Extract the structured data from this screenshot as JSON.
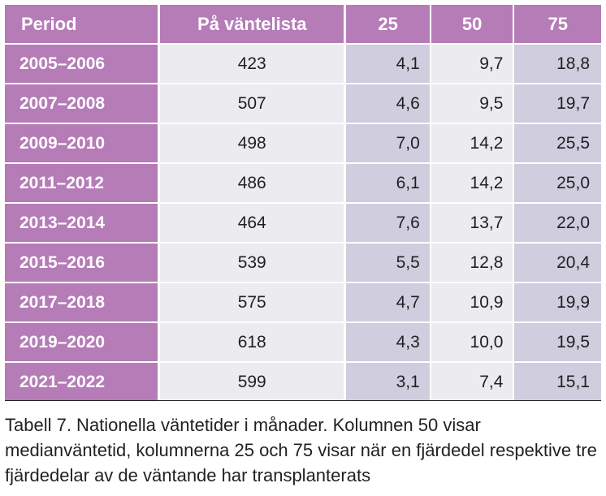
{
  "table": {
    "headers": [
      "Period",
      "På väntelista",
      "25",
      "50",
      "75"
    ],
    "rows": [
      [
        "2005–2006",
        "423",
        "4,1",
        "9,7",
        "18,8"
      ],
      [
        "2007–2008",
        "507",
        "4,6",
        "9,5",
        "19,7"
      ],
      [
        "2009–2010",
        "498",
        "7,0",
        "14,2",
        "25,5"
      ],
      [
        "2011–2012",
        "486",
        "6,1",
        "14,2",
        "25,0"
      ],
      [
        "2013–2014",
        "464",
        "7,6",
        "13,7",
        "22,0"
      ],
      [
        "2015–2016",
        "539",
        "5,5",
        "12,8",
        "20,4"
      ],
      [
        "2017–2018",
        "575",
        "4,7",
        "10,9",
        "19,9"
      ],
      [
        "2019–2020",
        "618",
        "4,3",
        "10,0",
        "19,5"
      ],
      [
        "2021–2022",
        "599",
        "3,1",
        "7,4",
        "15,1"
      ]
    ]
  },
  "caption": "Tabell 7. Nationella väntetider i månader. Kolumnen 50 visar medianväntetid, kolumnerna 25 och 75 visar när en fjärdedel respektive tre fjärdedelar av de väntande har transplanterats",
  "colors": {
    "header_purple": "#b57cb7",
    "light_cell": "#ebebf0",
    "shaded_cell": "#cfcdde"
  }
}
